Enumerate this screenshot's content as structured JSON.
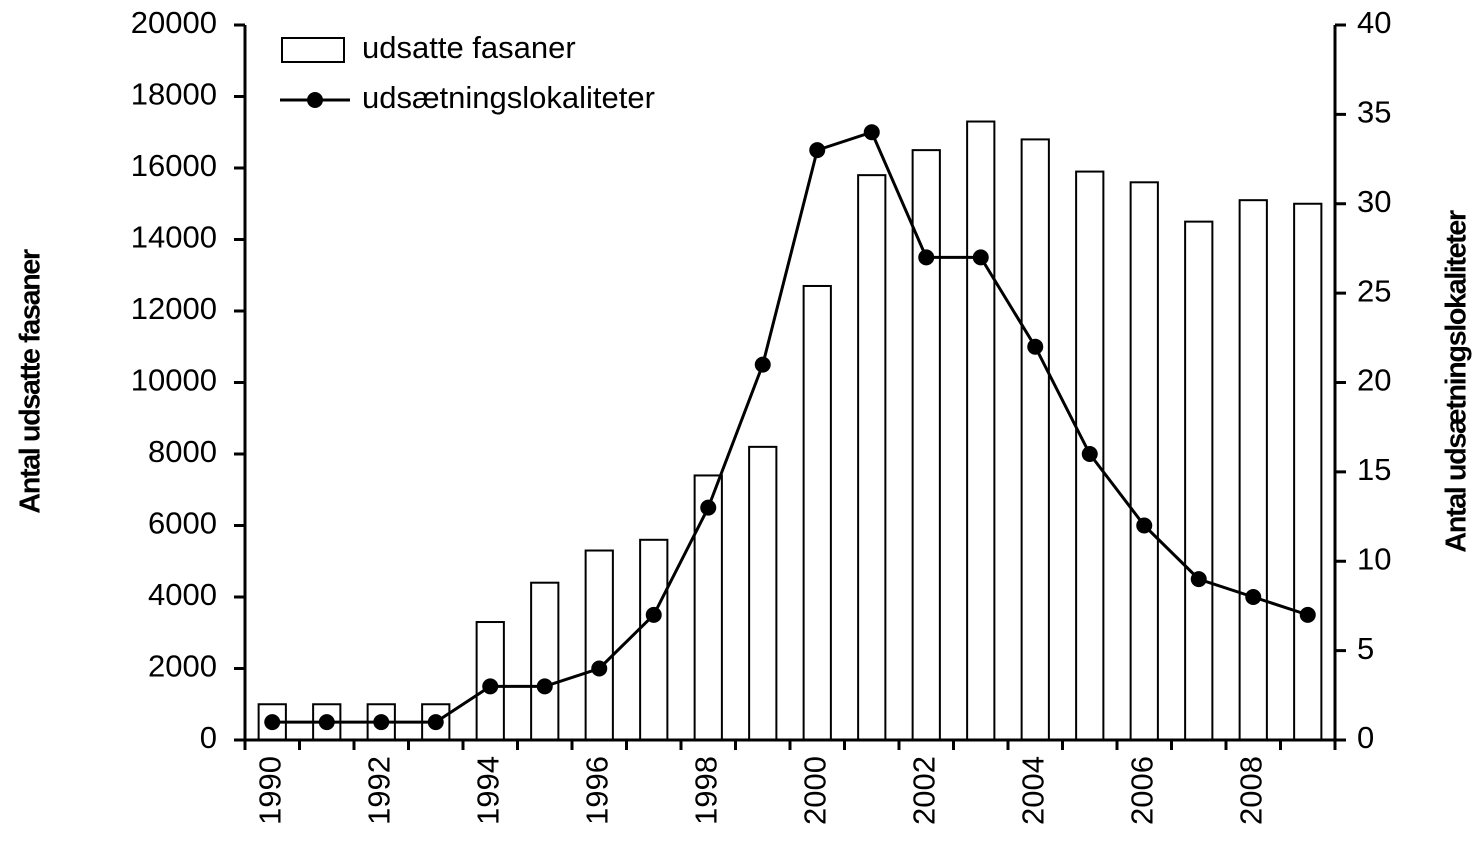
{
  "chart_data": {
    "type": "bar",
    "y_label": "Antal udsatte fasaner",
    "y2_label": "Antal udsætningslokaliteter",
    "categories": [
      "1990",
      null,
      "1992",
      null,
      "1994",
      null,
      "1996",
      null,
      "1998",
      null,
      "2000",
      null,
      "2002",
      null,
      "2004",
      null,
      "2006",
      null,
      "2008",
      null
    ],
    "series": [
      {
        "name": "udsatte fasaner",
        "type": "bar",
        "color": "#ffffff",
        "values": [
          1000,
          1000,
          1000,
          1000,
          3300,
          4400,
          5300,
          5600,
          7400,
          8200,
          12700,
          15800,
          16500,
          17300,
          16800,
          15900,
          15600,
          14500,
          15100,
          15000
        ]
      },
      {
        "name": "udsætningslokaliteter",
        "type": "line",
        "axis": "y2",
        "color": "#000000",
        "values": [
          1,
          1,
          1,
          1,
          3,
          3,
          4,
          7,
          13,
          21,
          33,
          34,
          27,
          27,
          22,
          16,
          12,
          9,
          8,
          7
        ]
      }
    ],
    "ylim": [
      0,
      20000
    ],
    "yticks": [
      0,
      2000,
      4000,
      6000,
      8000,
      10000,
      12000,
      14000,
      16000,
      18000,
      20000
    ],
    "y2lim": [
      0,
      40
    ],
    "y2ticks": [
      0,
      5,
      10,
      15,
      20,
      25,
      30,
      35,
      40
    ],
    "grid": false,
    "legend": "top-left"
  }
}
